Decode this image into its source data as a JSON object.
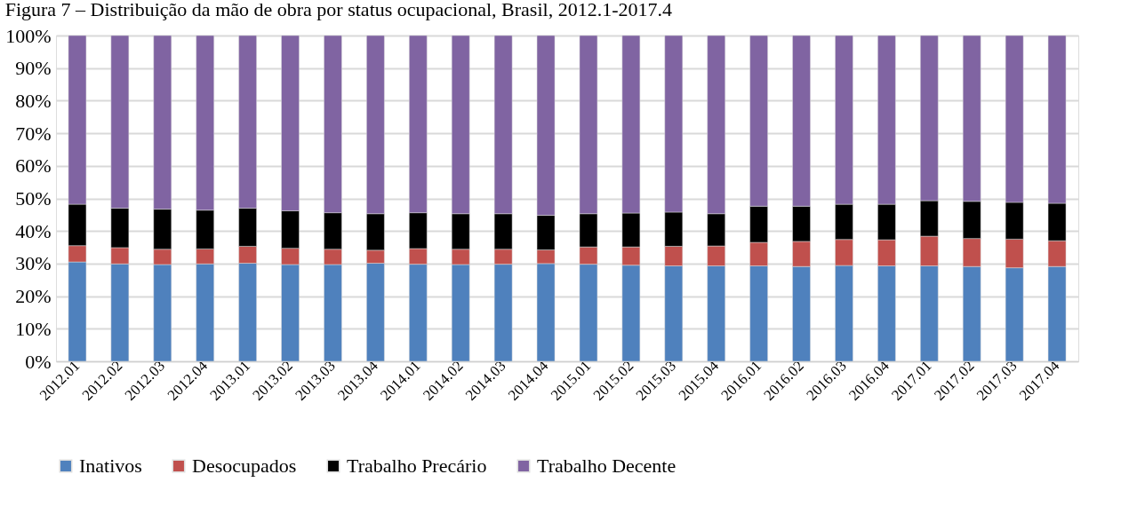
{
  "chart_data": {
    "type": "bar",
    "stacked": true,
    "title": "Figura 7 – Distribuição da mão de obra por status ocupacional, Brasil, 2012.1-2017.4",
    "categories": [
      "2012.01",
      "2012.02",
      "2012.03",
      "2012.04",
      "2013.01",
      "2013.02",
      "2013.03",
      "2013.04",
      "2014.01",
      "2014.02",
      "2014.03",
      "2014.04",
      "2015.01",
      "2015.02",
      "2015.03",
      "2015.04",
      "2016.01",
      "2016.02",
      "2016.03",
      "2016.04",
      "2017.01",
      "2017.02",
      "2017.03",
      "2017.04"
    ],
    "series": [
      {
        "name": "Inativos",
        "color": "#4f81bd",
        "values": [
          30.5,
          29.9,
          29.7,
          29.9,
          30.1,
          29.7,
          29.7,
          30.1,
          29.8,
          29.7,
          29.8,
          30.0,
          29.8,
          29.5,
          29.3,
          29.3,
          29.3,
          29.1,
          29.4,
          29.3,
          29.3,
          29.1,
          28.7,
          29.1
        ]
      },
      {
        "name": "Desocupados",
        "color": "#c0504d",
        "values": [
          5.0,
          5.0,
          4.7,
          4.6,
          5.2,
          5.0,
          4.7,
          4.0,
          4.8,
          4.7,
          4.6,
          4.2,
          5.3,
          5.6,
          6.0,
          6.1,
          7.2,
          7.7,
          8.0,
          8.0,
          9.1,
          8.6,
          8.8,
          7.9
        ]
      },
      {
        "name": "Trabalho Precário",
        "color": "#000000",
        "values": [
          12.7,
          12.1,
          12.3,
          11.9,
          11.7,
          11.5,
          11.2,
          11.2,
          11.0,
          10.9,
          10.9,
          10.6,
          10.2,
          10.4,
          10.5,
          9.9,
          11.1,
          10.8,
          10.8,
          10.9,
          10.9,
          11.4,
          11.3,
          11.5
        ]
      },
      {
        "name": "Trabalho Decente",
        "color": "#8064a2",
        "values": [
          51.8,
          53.0,
          53.3,
          53.6,
          53.0,
          53.8,
          54.4,
          54.7,
          54.4,
          54.7,
          54.7,
          55.2,
          54.7,
          54.5,
          54.2,
          54.7,
          52.4,
          52.4,
          51.8,
          51.8,
          50.7,
          50.9,
          51.2,
          51.5
        ]
      }
    ],
    "ylim": [
      0,
      100
    ],
    "yticks": [
      {
        "value": 0,
        "label": "0%"
      },
      {
        "value": 10,
        "label": "10%"
      },
      {
        "value": 20,
        "label": "20%"
      },
      {
        "value": 30,
        "label": "30%"
      },
      {
        "value": 40,
        "label": "40%"
      },
      {
        "value": 50,
        "label": "50%"
      },
      {
        "value": 60,
        "label": "60%"
      },
      {
        "value": 70,
        "label": "70%"
      },
      {
        "value": 80,
        "label": "80%"
      },
      {
        "value": 90,
        "label": "90%"
      },
      {
        "value": 100,
        "label": "100%"
      }
    ],
    "grid": "y",
    "legend": "bottom"
  }
}
